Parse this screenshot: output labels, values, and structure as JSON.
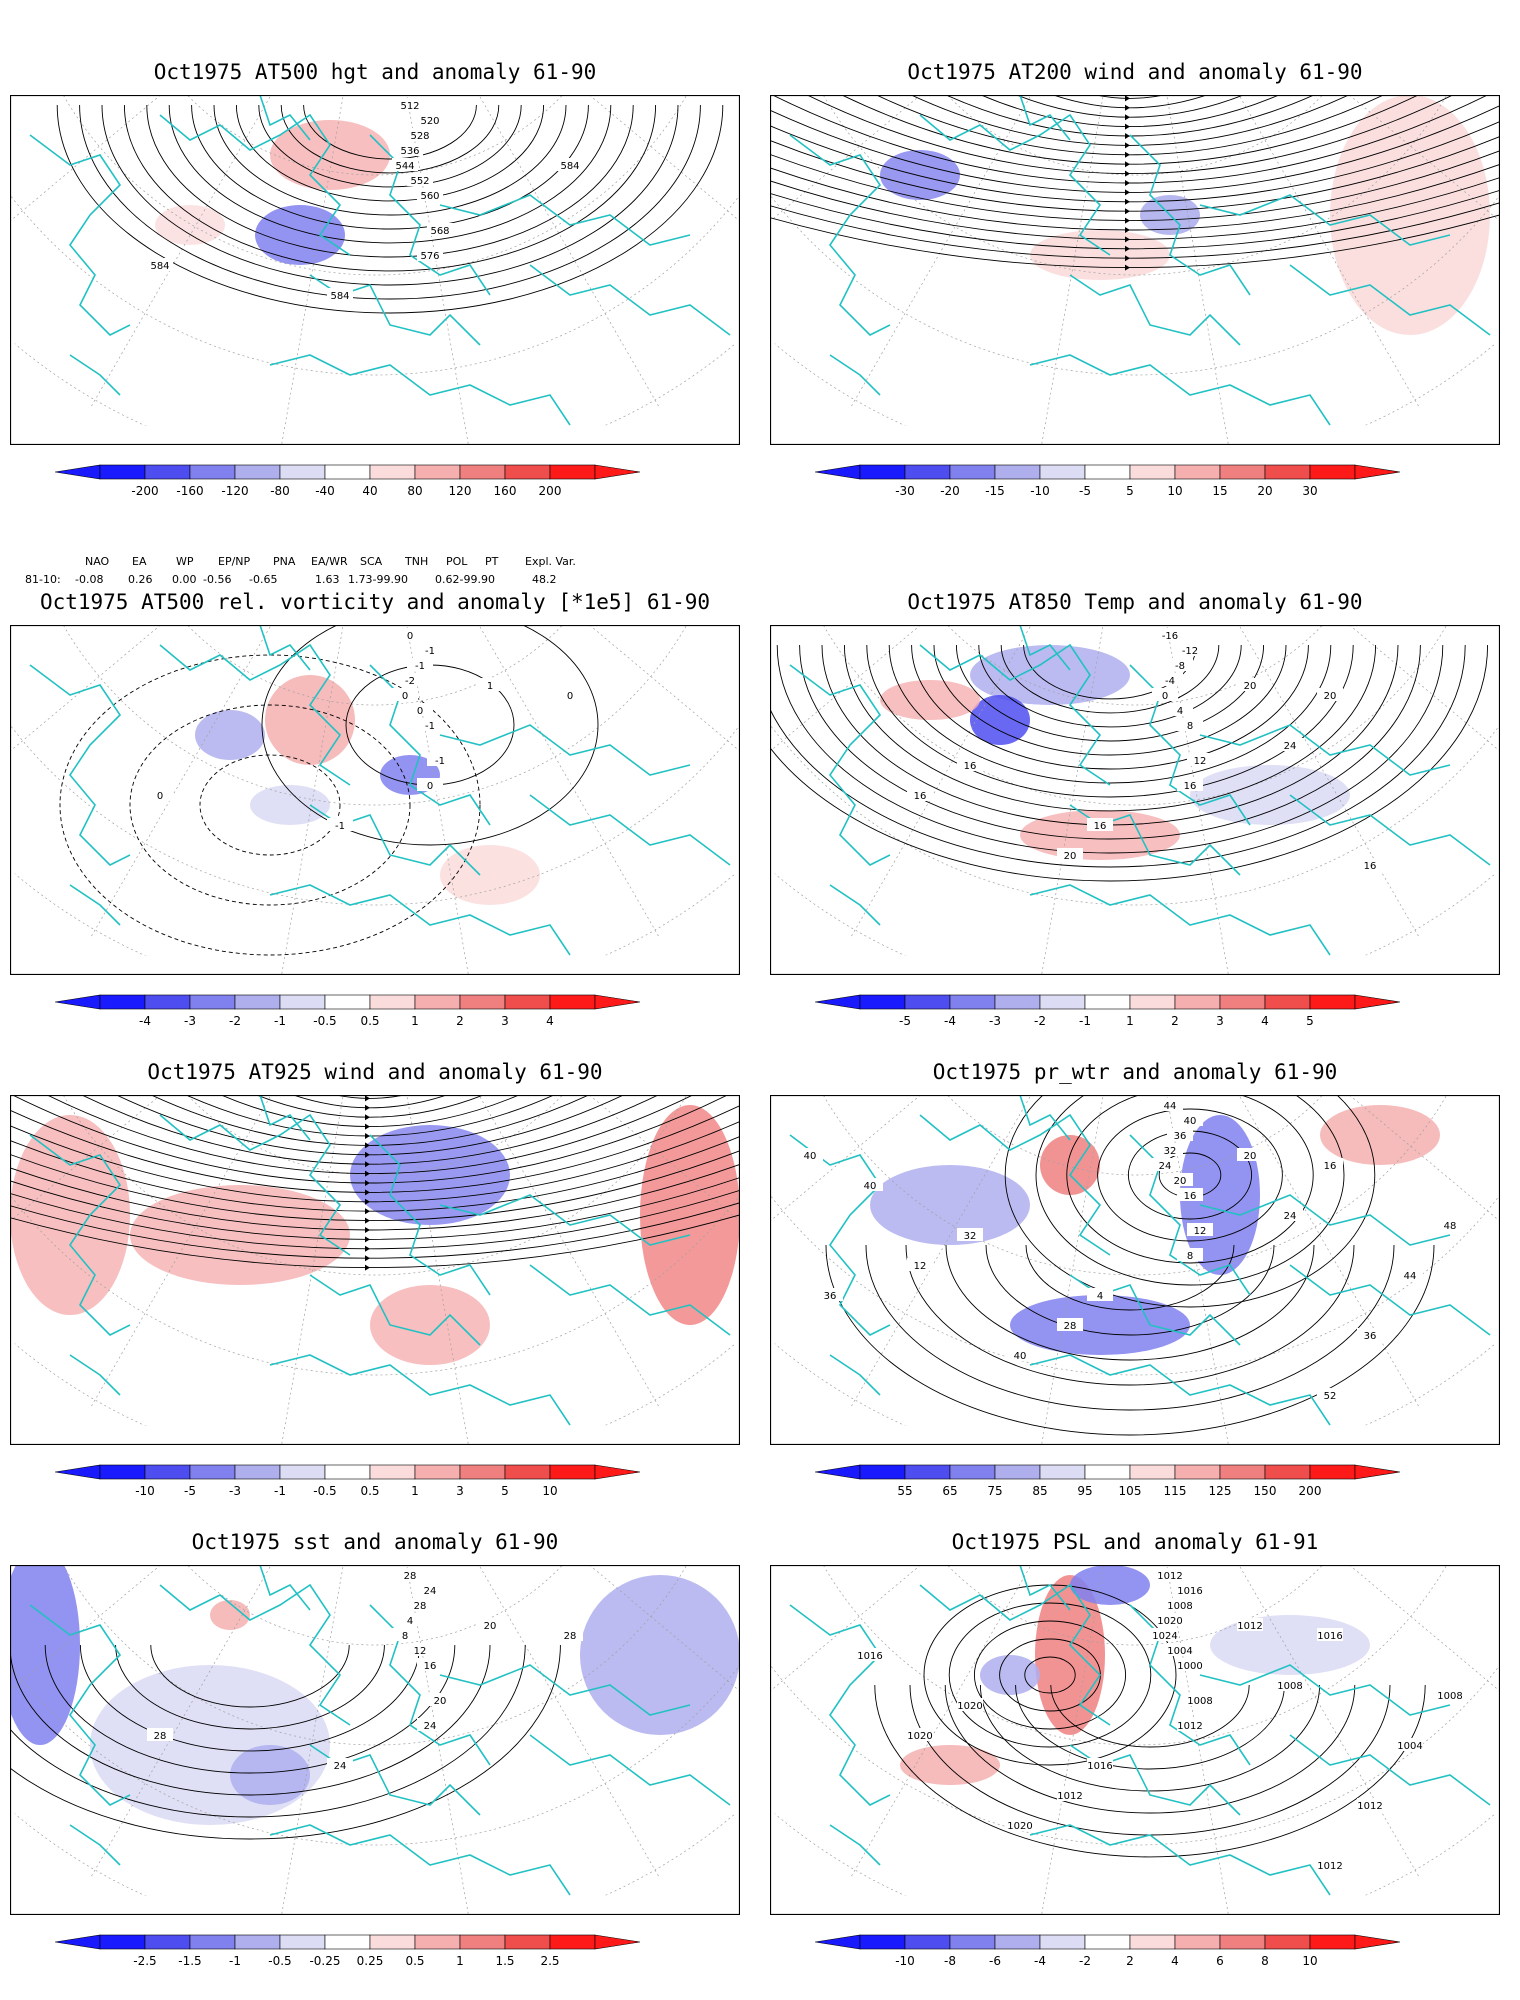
{
  "panels": [
    {
      "id": "p1",
      "title": "Oct1975 AT500 hgt and anomaly 61-90",
      "kind": "hgt",
      "labels": [
        "-200",
        "-160",
        "-120",
        "-80",
        "-40",
        "40",
        "80",
        "120",
        "160",
        "200"
      ],
      "contour_labels": [
        "512",
        "520",
        "528",
        "536",
        "544",
        "552",
        "560",
        "568",
        "576",
        "584",
        "584",
        "584"
      ]
    },
    {
      "id": "p2",
      "title": "Oct1975 AT200 wind and anomaly 61-90",
      "kind": "wind",
      "labels": [
        "-30",
        "-20",
        "-15",
        "-10",
        "-5",
        "5",
        "10",
        "15",
        "20",
        "30"
      ],
      "contour_labels": []
    },
    {
      "id": "p3",
      "title": "Oct1975 AT500 rel. vorticity and anomaly [*1e5] 61-90",
      "kind": "vort",
      "labels": [
        "-4",
        "-3",
        "-2",
        "-1",
        "-0.5",
        "0.5",
        "1",
        "2",
        "3",
        "4"
      ],
      "contour_labels": [
        "0",
        "-1",
        "-1",
        "-2",
        "0",
        "0",
        "-1",
        "-1",
        "0",
        "-1",
        "0",
        "0",
        "1"
      ]
    },
    {
      "id": "p4",
      "title": "Oct1975 AT850 Temp and anomaly 61-90",
      "kind": "temp",
      "labels": [
        "-5",
        "-4",
        "-3",
        "-2",
        "-1",
        "1",
        "2",
        "3",
        "4",
        "5"
      ],
      "contour_labels": [
        "-16",
        "-12",
        "-8",
        "-4",
        "0",
        "4",
        "8",
        "12",
        "16",
        "16",
        "16",
        "20",
        "20",
        "24",
        "20",
        "16",
        "16"
      ]
    },
    {
      "id": "p5",
      "title": "Oct1975 AT925 wind and anomaly 61-90",
      "kind": "wind2",
      "labels": [
        "-10",
        "-5",
        "-3",
        "-1",
        "-0.5",
        "0.5",
        "1",
        "3",
        "5",
        "10"
      ],
      "contour_labels": []
    },
    {
      "id": "p6",
      "title": "Oct1975 pr_wtr and anomaly 61-90",
      "kind": "prw",
      "labels": [
        "55",
        "65",
        "75",
        "85",
        "95",
        "105",
        "115",
        "125",
        "150",
        "200"
      ],
      "contour_labels": [
        "44",
        "40",
        "36",
        "32",
        "24",
        "20",
        "16",
        "12",
        "8",
        "4",
        "12",
        "16",
        "20",
        "24",
        "28",
        "32",
        "36",
        "40",
        "44",
        "40",
        "52",
        "48",
        "40",
        "36"
      ]
    },
    {
      "id": "p7",
      "title": "Oct1975 sst and anomaly 61-90",
      "kind": "sst",
      "labels": [
        "-2.5",
        "-1.5",
        "-1",
        "-0.5",
        "-0.25",
        "0.25",
        "0.5",
        "1",
        "1.5",
        "2.5"
      ],
      "contour_labels": [
        "28",
        "24",
        "28",
        "4",
        "8",
        "12",
        "16",
        "20",
        "24",
        "24",
        "28",
        "28",
        "20"
      ]
    },
    {
      "id": "p8",
      "title": "Oct1975 PSL and anomaly 61-91",
      "kind": "psl",
      "labels": [
        "-10",
        "-8",
        "-6",
        "-4",
        "-2",
        "2",
        "4",
        "6",
        "8",
        "10"
      ],
      "contour_labels": [
        "1012",
        "1016",
        "1008",
        "1020",
        "1024",
        "1004",
        "1000",
        "1008",
        "1012",
        "1016",
        "1020",
        "1016",
        "1012",
        "1008",
        "1012",
        "1020",
        "1012",
        "1016",
        "1004",
        "1020",
        "1012",
        "1008"
      ]
    }
  ],
  "indices": {
    "row_label": "81-10:",
    "names": [
      "NAO",
      "EA",
      "WP",
      "EP/NP",
      "PNA",
      "EA/WR",
      "SCA",
      "TNH",
      "POL",
      "PT",
      "Expl. Var."
    ],
    "values": [
      "-0.08",
      "0.26",
      "0.00",
      "-0.56",
      "-0.65",
      "1.63",
      "1.73-99.90",
      "0.62-99.90",
      "48.2"
    ]
  },
  "colors": {
    "blue": [
      "#1a1aff",
      "#4d4df0",
      "#8080ee",
      "#afafee",
      "#dcdcf5"
    ],
    "red": [
      "#fbdcdc",
      "#f5afaf",
      "#f08080",
      "#f04d4d",
      "#ff1a1a"
    ],
    "coast": "#22c1c3",
    "contour": "#000000",
    "grid": "#a0a0a0"
  }
}
